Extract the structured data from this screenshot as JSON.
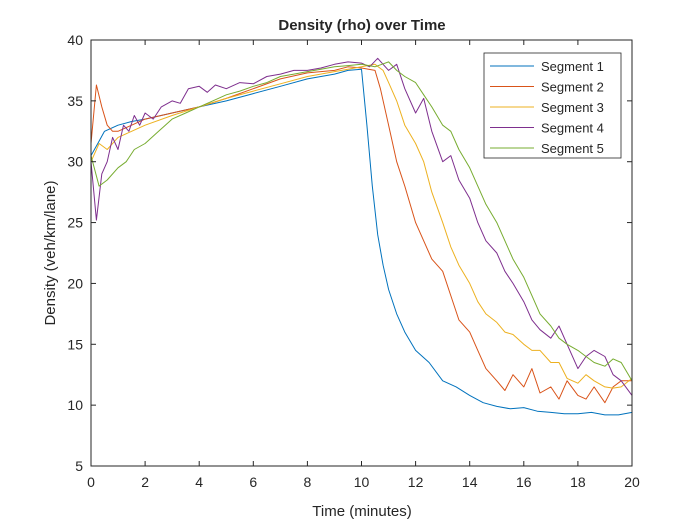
{
  "chart_data": {
    "type": "line",
    "title": "Density (rho) over Time",
    "xlabel": "Time (minutes)",
    "ylabel": "Density (veh/km/lane)",
    "xlim": [
      0,
      20
    ],
    "ylim": [
      5,
      40
    ],
    "xticks": [
      0,
      2,
      4,
      6,
      8,
      10,
      12,
      14,
      16,
      18,
      20
    ],
    "yticks": [
      5,
      10,
      15,
      20,
      25,
      30,
      35,
      40
    ],
    "grid": false,
    "legend_position": "top-right",
    "series": [
      {
        "name": "Segment 1",
        "color": "#0072BD",
        "x": [
          0,
          0.25,
          0.5,
          1,
          1.5,
          2,
          3,
          4,
          5,
          6,
          7,
          8,
          9,
          9.5,
          10,
          10.2,
          10.4,
          10.6,
          10.8,
          11,
          11.3,
          11.6,
          12,
          12.5,
          13,
          13.5,
          14,
          14.5,
          15,
          15.5,
          16,
          16.5,
          17,
          17.5,
          18,
          18.5,
          19,
          19.5,
          20
        ],
        "y": [
          30.5,
          31.5,
          32.5,
          33,
          33.3,
          33.5,
          34,
          34.5,
          35,
          35.6,
          36.2,
          36.8,
          37.2,
          37.5,
          37.6,
          33,
          28,
          24,
          21.5,
          19.5,
          17.5,
          16,
          14.5,
          13.5,
          12,
          11.5,
          10.8,
          10.2,
          9.9,
          9.7,
          9.8,
          9.5,
          9.4,
          9.3,
          9.3,
          9.4,
          9.2,
          9.2,
          9.4
        ]
      },
      {
        "name": "Segment 2",
        "color": "#D95319",
        "x": [
          0,
          0.2,
          0.4,
          0.6,
          0.8,
          1,
          1.5,
          2,
          3,
          4,
          5,
          6,
          7,
          8,
          9,
          9.5,
          10,
          10.5,
          10.7,
          11,
          11.3,
          11.6,
          12,
          12.3,
          12.6,
          13,
          13.3,
          13.6,
          14,
          14.3,
          14.6,
          15,
          15.3,
          15.6,
          16,
          16.3,
          16.6,
          17,
          17.3,
          17.6,
          18,
          18.3,
          18.6,
          19,
          19.3,
          19.6,
          20
        ],
        "y": [
          31.5,
          36.3,
          34.5,
          33,
          32.5,
          32.5,
          33,
          33.5,
          34,
          34.5,
          35.2,
          36,
          36.8,
          37.3,
          37.5,
          37.8,
          37.7,
          37.5,
          36,
          33,
          30,
          28,
          25,
          23.5,
          22,
          21,
          19,
          17,
          16,
          14.5,
          13,
          12,
          11.2,
          12.5,
          11.5,
          13,
          11,
          11.5,
          10.5,
          12,
          10.8,
          10.5,
          11.5,
          10.2,
          11.5,
          12,
          12
        ]
      },
      {
        "name": "Segment 3",
        "color": "#EDB120",
        "x": [
          0,
          0.3,
          0.6,
          1,
          1.5,
          2,
          3,
          4,
          5,
          6,
          7,
          8,
          9,
          9.5,
          10,
          10.5,
          10.8,
          11,
          11.3,
          11.6,
          12,
          12.3,
          12.6,
          13,
          13.3,
          13.6,
          14,
          14.3,
          14.6,
          15,
          15.3,
          15.6,
          16,
          16.3,
          16.6,
          17,
          17.3,
          17.6,
          18,
          18.3,
          18.6,
          19,
          19.3,
          19.6,
          20
        ],
        "y": [
          30,
          31.5,
          31,
          32,
          32.5,
          33,
          33.8,
          34.5,
          35.2,
          35.8,
          36.4,
          37,
          37.4,
          37.6,
          37.8,
          38,
          37.5,
          36.5,
          35,
          33,
          31.5,
          30,
          27.5,
          25,
          23,
          21.5,
          20,
          18.5,
          17.5,
          16.8,
          16,
          15.8,
          15,
          14.5,
          14.5,
          13.5,
          13.5,
          12.2,
          11.8,
          12.5,
          12,
          11.5,
          11.4,
          11.5,
          12.2
        ]
      },
      {
        "name": "Segment 4",
        "color": "#7E2F8E",
        "x": [
          0,
          0.2,
          0.4,
          0.6,
          0.8,
          1,
          1.2,
          1.4,
          1.6,
          1.8,
          2,
          2.3,
          2.6,
          3,
          3.3,
          3.6,
          4,
          4.3,
          4.6,
          5,
          5.5,
          6,
          6.5,
          7,
          7.5,
          8,
          8.5,
          9,
          9.5,
          10,
          10.3,
          10.6,
          11,
          11.3,
          11.6,
          12,
          12.3,
          12.6,
          13,
          13.3,
          13.6,
          14,
          14.3,
          14.6,
          15,
          15.3,
          15.6,
          16,
          16.3,
          16.6,
          17,
          17.3,
          17.6,
          18,
          18.3,
          18.6,
          19,
          19.3,
          19.6,
          20
        ],
        "y": [
          30,
          25.2,
          29,
          30,
          32,
          31,
          33,
          32.5,
          33.8,
          33,
          34,
          33.5,
          34.5,
          35,
          34.8,
          36,
          36.2,
          35.7,
          36.3,
          36,
          36.5,
          36.4,
          37,
          37.2,
          37.5,
          37.5,
          37.7,
          38,
          38.2,
          38.1,
          37.8,
          38.5,
          37.5,
          38,
          36,
          34,
          35.2,
          32.5,
          30,
          30.5,
          28.5,
          27,
          25,
          23.5,
          22.5,
          21,
          20,
          18.5,
          17,
          16.2,
          15.5,
          16.5,
          15,
          13,
          14,
          14.5,
          14,
          12.5,
          12,
          10.8
        ]
      },
      {
        "name": "Segment 5",
        "color": "#77AC30",
        "x": [
          0,
          0.3,
          0.6,
          1,
          1.3,
          1.6,
          2,
          2.5,
          3,
          3.5,
          4,
          4.5,
          5,
          5.5,
          6,
          6.5,
          7,
          7.5,
          8,
          8.5,
          9,
          9.5,
          10,
          10.5,
          11,
          11.3,
          11.6,
          12,
          12.3,
          12.6,
          13,
          13.3,
          13.6,
          14,
          14.3,
          14.6,
          15,
          15.3,
          15.6,
          16,
          16.3,
          16.6,
          17,
          17.3,
          17.6,
          18,
          18.3,
          18.6,
          19,
          19.3,
          19.6,
          20
        ],
        "y": [
          30.5,
          28,
          28.5,
          29.5,
          30,
          31,
          31.5,
          32.5,
          33.5,
          34,
          34.5,
          35,
          35.5,
          35.8,
          36.2,
          36.5,
          37,
          37.2,
          37.4,
          37.6,
          37.8,
          37.9,
          38,
          37.8,
          38.2,
          37.5,
          37,
          36.5,
          35.5,
          34.5,
          33,
          32.5,
          31,
          29.5,
          28,
          26.5,
          25,
          23.5,
          22,
          20.5,
          19,
          17.5,
          16.5,
          15.5,
          15,
          14.5,
          14,
          13.5,
          13.2,
          13.8,
          13.5,
          12
        ]
      }
    ]
  }
}
